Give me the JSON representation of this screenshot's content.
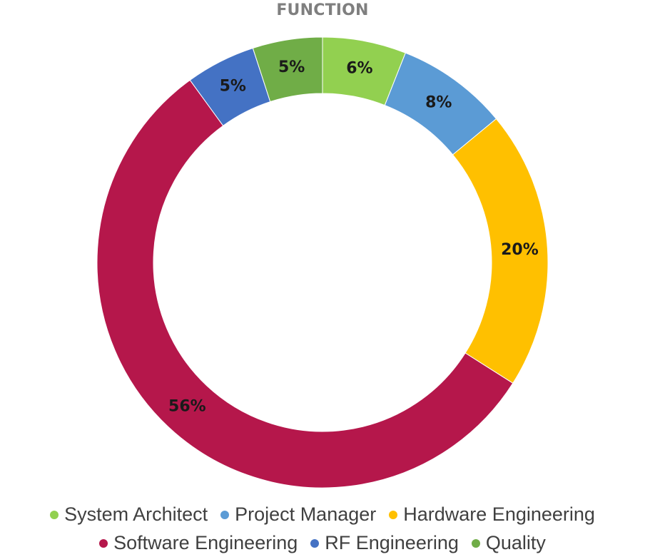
{
  "chart_data": {
    "type": "pie",
    "title": "FUNCTION",
    "categories": [
      "System Architect",
      "Project Manager",
      "Hardware Engineering",
      "Software Engineering",
      "RF Engineering",
      "Quality"
    ],
    "values": [
      6,
      8,
      20,
      56,
      5,
      5
    ],
    "data_labels": [
      "6%",
      "8%",
      "20%",
      "56%",
      "5%",
      "5%"
    ],
    "colors": [
      "#92d050",
      "#5b9bd5",
      "#ffc000",
      "#b5174b",
      "#4472c4",
      "#70ad47"
    ],
    "legend_position": "bottom",
    "style": "donut"
  }
}
